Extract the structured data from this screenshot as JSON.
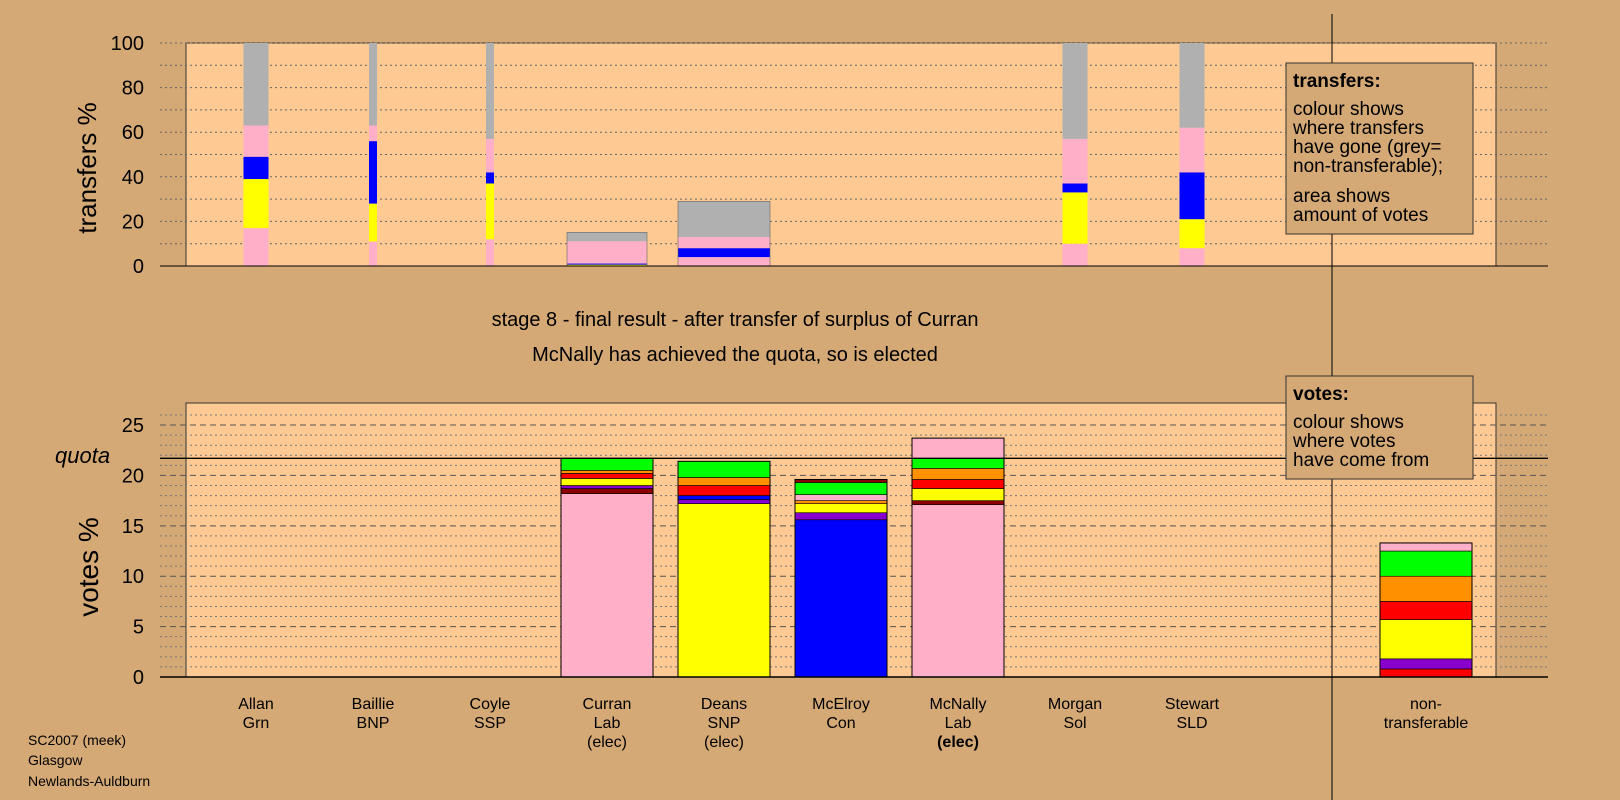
{
  "titles": {
    "stage": "stage 8 - final result - after transfer of surplus of Curran",
    "note": "McNally has achieved the quota, so is elected"
  },
  "footer": [
    "SC2007 (meek)",
    "Glasgow",
    "Newlands-Auldburn"
  ],
  "legend_transfers": {
    "title": "transfers:",
    "lines1": [
      "colour shows",
      "where transfers",
      "have gone (grey=",
      "non-transferable);"
    ],
    "lines2": [
      "area shows",
      "amount of votes"
    ]
  },
  "legend_votes": {
    "title": "votes:",
    "lines": [
      "colour shows",
      "where votes",
      "have come from"
    ]
  },
  "colors": {
    "background": "#d4a976",
    "plot": "#ffc993",
    "Lab": "#ffb0c8",
    "SNP": "#ffff00",
    "Con": "#0000ff",
    "SSP": "#ff0000",
    "LD": "#ff9000",
    "Grn": "#00ff00",
    "Others": "#8800cc",
    "BNP": "#8b0000",
    "nontrans": "#b0b0b0"
  },
  "chart_data": [
    {
      "type": "bar",
      "ylabel": "transfers %",
      "ylim": [
        0,
        100
      ],
      "yticks": [
        0,
        20,
        40,
        60,
        80,
        100
      ],
      "grid": "dotted every 10",
      "columns": [
        {
          "width": "thin",
          "segments": [
            [
              "Lab",
              17
            ],
            [
              "SNP",
              22
            ],
            [
              "Con",
              10
            ],
            [
              "Lab",
              14
            ],
            [
              "nontrans",
              37
            ]
          ]
        },
        {
          "width": "thin-narrow",
          "segments": [
            [
              "Lab",
              11
            ],
            [
              "SNP",
              17
            ],
            [
              "Con",
              28
            ],
            [
              "Lab",
              7
            ],
            [
              "nontrans",
              37
            ]
          ]
        },
        {
          "width": "thin-narrow",
          "segments": [
            [
              "Lab",
              12
            ],
            [
              "SNP",
              25
            ],
            [
              "Con",
              5
            ],
            [
              "Lab",
              15
            ],
            [
              "nontrans",
              43
            ]
          ]
        },
        {
          "width": "wide",
          "segments": [
            [
              "SNP",
              0.6
            ],
            [
              "Con",
              0.5
            ],
            [
              "Lab",
              10
            ],
            [
              "nontrans",
              4
            ]
          ]
        },
        {
          "width": "wide",
          "segments": [
            [
              "Lab",
              4
            ],
            [
              "Con",
              4
            ],
            [
              "Lab",
              5
            ],
            [
              "nontrans",
              16
            ]
          ]
        },
        null,
        null,
        {
          "width": "thin",
          "segments": [
            [
              "Lab",
              10
            ],
            [
              "SNP",
              23
            ],
            [
              "Con",
              4
            ],
            [
              "Lab",
              20
            ],
            [
              "nontrans",
              43
            ]
          ]
        },
        {
          "width": "thin",
          "segments": [
            [
              "Lab",
              8
            ],
            [
              "SNP",
              13
            ],
            [
              "Con",
              21
            ],
            [
              "Lab",
              20
            ],
            [
              "nontrans",
              38
            ]
          ]
        }
      ]
    },
    {
      "type": "bar",
      "ylabel": "votes %",
      "ylim": [
        0,
        27
      ],
      "yticks": [
        0,
        5,
        10,
        15,
        20,
        25
      ],
      "quota": 21.7,
      "quota_label": "quota",
      "categories": [
        [
          "Allan",
          "Grn"
        ],
        [
          "Baillie",
          "BNP"
        ],
        [
          "Coyle",
          "SSP"
        ],
        [
          "Curran",
          "Lab",
          "(elec)"
        ],
        [
          "Deans",
          "SNP",
          "(elec)"
        ],
        [
          "McElroy",
          "Con"
        ],
        [
          "McNally",
          "Lab",
          "(elec)"
        ],
        [
          "Morgan",
          "Sol"
        ],
        [
          "Stewart",
          "SLD"
        ]
      ],
      "bold_label_index": 6,
      "series": [
        null,
        null,
        null,
        {
          "segments": [
            [
              "Lab",
              18.2
            ],
            [
              "BNP",
              0.5
            ],
            [
              "Others",
              0.3
            ],
            [
              "SNP",
              0.7
            ],
            [
              "SSP",
              0.5
            ],
            [
              "LD",
              0.3
            ],
            [
              "Grn",
              1.2
            ]
          ]
        },
        {
          "segments": [
            [
              "SNP",
              17.2
            ],
            [
              "Others",
              0.4
            ],
            [
              "Con",
              0.4
            ],
            [
              "SSP",
              1.0
            ],
            [
              "LD",
              0.8
            ],
            [
              "Grn",
              1.6
            ]
          ]
        },
        {
          "segments": [
            [
              "Con",
              15.6
            ],
            [
              "Others",
              0.7
            ],
            [
              "SNP",
              0.9
            ],
            [
              "LD",
              0.3
            ],
            [
              "Lab",
              0.6
            ],
            [
              "Grn",
              1.2
            ],
            [
              "BNP",
              0.3
            ]
          ]
        },
        {
          "segments": [
            [
              "Lab",
              17.1
            ],
            [
              "BNP",
              0.4
            ],
            [
              "SNP",
              1.2
            ],
            [
              "SSP",
              0.9
            ],
            [
              "LD",
              1.1
            ],
            [
              "Grn",
              1.0
            ],
            [
              "Lab",
              2.0
            ]
          ]
        },
        null,
        null
      ],
      "nontransferable": {
        "label": [
          "non-",
          "transferable"
        ],
        "segments": [
          [
            "SSP",
            0.8
          ],
          [
            "Others",
            1.0
          ],
          [
            "SNP",
            3.9
          ],
          [
            "SSP",
            1.8
          ],
          [
            "LD",
            2.5
          ],
          [
            "Grn",
            2.5
          ],
          [
            "Lab",
            0.8
          ]
        ]
      }
    }
  ]
}
